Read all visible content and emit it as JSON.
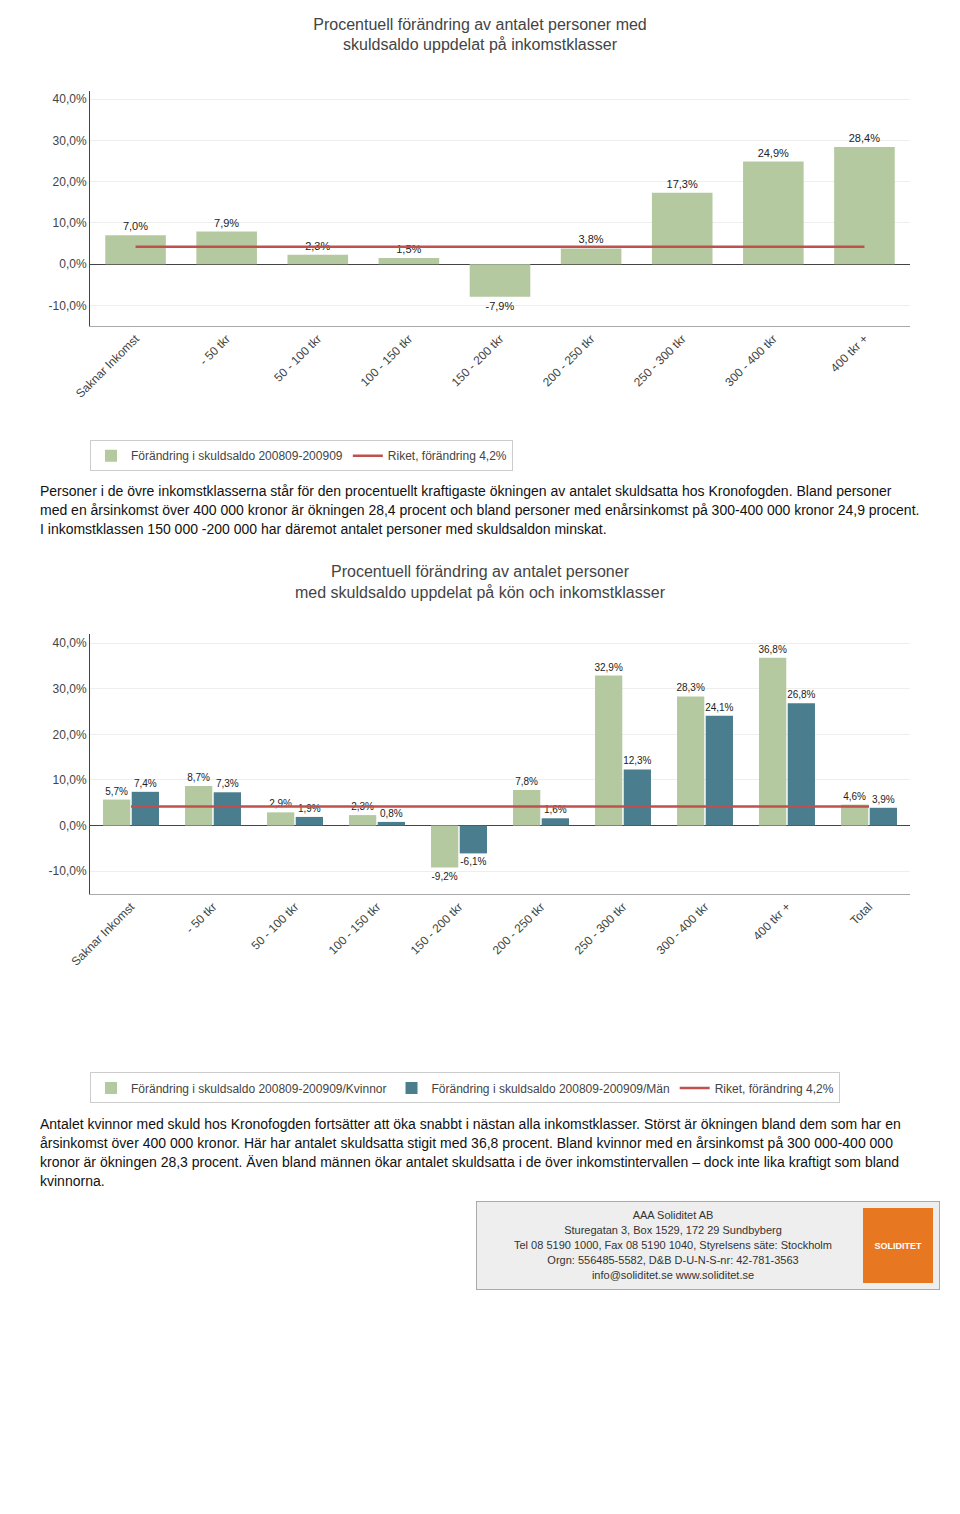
{
  "chart_data": [
    {
      "type": "bar",
      "title": "Procentuell förändring av antalet personer med\nskuldsaldo uppdelat på inkomstklasser",
      "categories": [
        "Saknar Inkomst",
        "- 50 tkr",
        "50 - 100 tkr",
        "100 - 150 tkr",
        "150 - 200 tkr",
        "200 - 250 tkr",
        "250 - 300 tkr",
        "300 - 400 tkr",
        "400 tkr +"
      ],
      "series": [
        {
          "name": "Förändring i skuldsaldo 200809-200909",
          "type": "bar",
          "color": "#b5c9a1",
          "values": [
            7.0,
            7.9,
            2.3,
            1.5,
            -7.9,
            3.8,
            17.3,
            24.9,
            28.4
          ],
          "value_labels": [
            "7,0%",
            "7,9%",
            "2,3%",
            "1,5%",
            "-7,9%",
            "3,8%",
            "17,3%",
            "24,9%",
            "28,4%"
          ]
        },
        {
          "name": "Riket, förändring 4,2%",
          "type": "line",
          "color": "#c0504d",
          "values": [
            4.2,
            4.2,
            4.2,
            4.2,
            4.2,
            4.2,
            4.2,
            4.2,
            4.2
          ]
        }
      ],
      "ylim": [
        -15,
        42
      ],
      "yticks": [
        {
          "value": -10,
          "label": "-10,0%"
        },
        {
          "value": 0,
          "label": "0,0%"
        },
        {
          "value": 10,
          "label": "10,0%"
        },
        {
          "value": 20,
          "label": "20,0%"
        },
        {
          "value": 30,
          "label": "30,0%"
        },
        {
          "value": 40,
          "label": "40,0%"
        }
      ],
      "grid": true,
      "legend": "bottom",
      "data_labels": true,
      "annotations": [
        "Personer i de övre inkomstklasserna står för den procentuellt kraftigaste ökningen av antalet skuldsatta hos Kronofogden. Bland personer med en årsinkomst över 400 000 kronor är ökningen 28,4 procent och bland personer med enårsinkomst på 300-400 000 kronor 24,9 procent. I inkomstklassen 150 000 -200 000 har däremot antalet personer med skuldsaldon minskat."
      ]
    },
    {
      "type": "bar",
      "title": "Procentuell förändring av antalet personer\nmed skuldsaldo uppdelat på kön och inkomstklasser",
      "categories": [
        "Saknar Inkomst",
        "- 50 tkr",
        "50 - 100 tkr",
        "100 - 150 tkr",
        "150 - 200 tkr",
        "200 - 250 tkr",
        "250 - 300 tkr",
        "300 - 400 tkr",
        "400 tkr +",
        "Total"
      ],
      "series": [
        {
          "name": "Förändring i skuldsaldo 200809-200909/Kvinnor",
          "type": "bar",
          "color": "#b5c9a1",
          "values": [
            5.7,
            8.7,
            2.9,
            2.3,
            -9.2,
            7.8,
            32.9,
            28.3,
            36.8,
            4.6
          ],
          "value_labels": [
            "5,7%",
            "8,7%",
            "2,9%",
            "2,3%",
            "-9,2%",
            "7,8%",
            "32,9%",
            "28,3%",
            "36,8%",
            "4,6%"
          ]
        },
        {
          "name": "Förändring i skuldsaldo 200809-200909/Män",
          "type": "bar",
          "color": "#4a7d8e",
          "values": [
            7.4,
            7.3,
            1.9,
            0.8,
            -6.1,
            1.6,
            12.3,
            24.1,
            26.8,
            3.9
          ],
          "value_labels": [
            "7,4%",
            "7,3%",
            "1,9%",
            "0,8%",
            "-6,1%",
            "1,6%",
            "12,3%",
            "24,1%",
            "26,8%",
            "3,9%"
          ]
        },
        {
          "name": "Riket, förändring 4,2%",
          "type": "line",
          "color": "#c0504d",
          "values": [
            4.2,
            4.2,
            4.2,
            4.2,
            4.2,
            4.2,
            4.2,
            4.2,
            4.2,
            4.2
          ]
        }
      ],
      "ylim": [
        -15,
        42
      ],
      "yticks": [
        {
          "value": -10,
          "label": "-10,0%"
        },
        {
          "value": 0,
          "label": "0,0%"
        },
        {
          "value": 10,
          "label": "10,0%"
        },
        {
          "value": 20,
          "label": "20,0%"
        },
        {
          "value": 30,
          "label": "30,0%"
        },
        {
          "value": 40,
          "label": "40,0%"
        }
      ],
      "grid": true,
      "legend": "bottom",
      "data_labels": true,
      "annotations": [
        "Antalet kvinnor med skuld hos Kronofogden fortsätter att öka snabbt i nästan alla inkomstklasser. Störst är ökningen bland dem som har en årsinkomst över 400 000 kronor. Här har antalet skuldsatta stigit med 36,8 procent. Bland kvinnor med en årsinkomst på 300 000-400 000 kronor är ökningen 28,3 procent. Även bland männen ökar antalet skuldsatta i de över inkomstintervallen – dock inte lika kraftigt som bland kvinnorna."
      ]
    }
  ],
  "footer": {
    "annotations": [
      "AAA Soliditet AB",
      "Sturegatan 3, Box 1529, 172 29 Sundbyberg",
      "Tel 08 5190 1000, Fax 08 5190 1040, Styrelsens säte: Stockholm",
      "Orgn: 556485-5582, D&B D-U-N-S-nr: 42-781-3563",
      "info@soliditet.se   www.soliditet.se"
    ],
    "logo": "SOLIDITET",
    "color": "#e87722"
  }
}
